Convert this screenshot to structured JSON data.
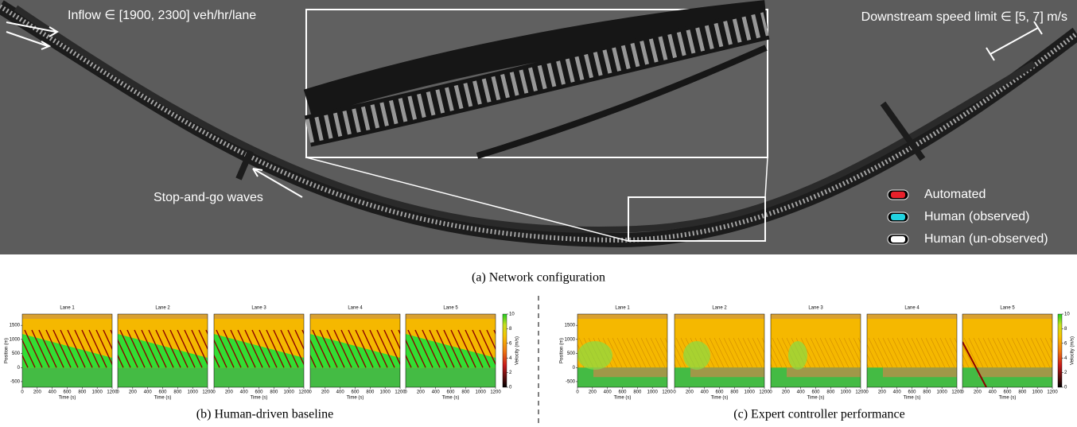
{
  "network": {
    "inflow_label": "Inflow ∈ [1900, 2300] veh/hr/lane",
    "speed_limit_label": "Downstream speed limit ∈ [5, 7] m/s",
    "waves_label": "Stop-and-go waves",
    "legend": [
      {
        "name": "Automated",
        "color": "#e8202a"
      },
      {
        "name": "Human (observed)",
        "color": "#22d3e0"
      },
      {
        "name": "Human (un-observed)",
        "color": "#ffffff"
      }
    ],
    "caption": "(a) Network configuration"
  },
  "heatmaps": {
    "lanes": [
      "Lane 1",
      "Lane 2",
      "Lane 3",
      "Lane 4",
      "Lane 5"
    ],
    "xlabel": "Time (s)",
    "ylabel": "Position (m)",
    "xlim": [
      0,
      1200
    ],
    "xticks": [
      0,
      200,
      400,
      600,
      800,
      1000,
      1200
    ],
    "ylim": [
      -700,
      1900
    ],
    "yticks": [
      -500,
      0,
      500,
      1000,
      1500
    ],
    "colorbar": {
      "label": "Velocity (m/s)",
      "lim": [
        0,
        10
      ],
      "ticks": [
        0,
        2,
        4,
        6,
        8,
        10
      ]
    }
  },
  "panels": [
    {
      "caption": "(b) Human-driven baseline"
    },
    {
      "caption": "(c) Expert controller performance"
    }
  ]
}
